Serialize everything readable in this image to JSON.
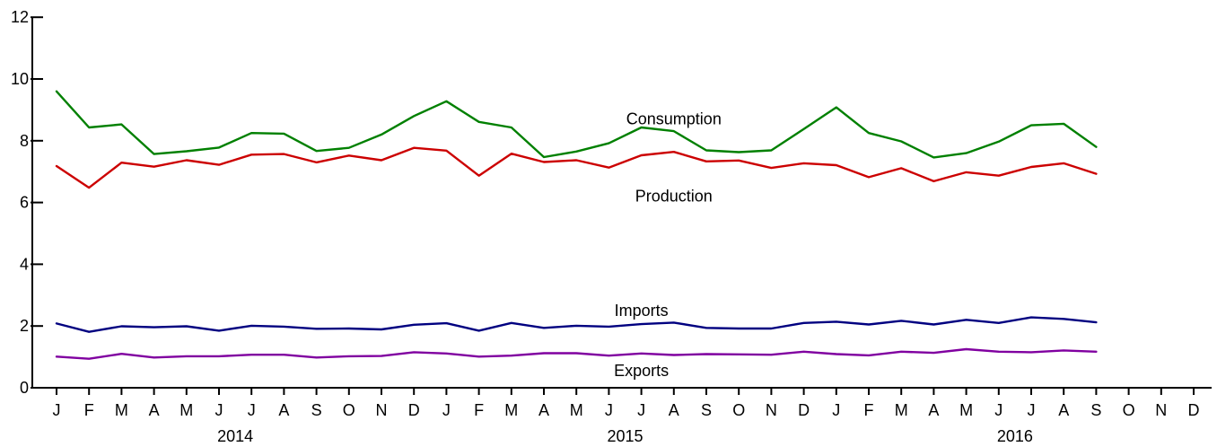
{
  "chart_data": {
    "type": "line",
    "title": "",
    "xlabel": "",
    "ylabel": "",
    "ylim": [
      0,
      12
    ],
    "y_ticks": [
      0,
      2,
      4,
      6,
      8,
      10,
      12
    ],
    "grid": false,
    "legend": "none (series labeled directly on lines)",
    "x_month_labels": [
      "J",
      "F",
      "M",
      "A",
      "M",
      "J",
      "J",
      "A",
      "S",
      "O",
      "N",
      "D",
      "J",
      "F",
      "M",
      "A",
      "M",
      "J",
      "J",
      "A",
      "S",
      "O",
      "N",
      "D",
      "J",
      "F",
      "M",
      "A",
      "M",
      "J",
      "J",
      "A",
      "S",
      "O",
      "N",
      "D"
    ],
    "x_year_labels": [
      "2014",
      "2015",
      "2016"
    ],
    "x": [
      "2014-01",
      "2014-02",
      "2014-03",
      "2014-04",
      "2014-05",
      "2014-06",
      "2014-07",
      "2014-08",
      "2014-09",
      "2014-10",
      "2014-11",
      "2014-12",
      "2015-01",
      "2015-02",
      "2015-03",
      "2015-04",
      "2015-05",
      "2015-06",
      "2015-07",
      "2015-08",
      "2015-09",
      "2015-10",
      "2015-11",
      "2015-12",
      "2016-01",
      "2016-02",
      "2016-03",
      "2016-04",
      "2016-05",
      "2016-06",
      "2016-07",
      "2016-08",
      "2016-09"
    ],
    "series": [
      {
        "name": "Consumption",
        "color": "#008000",
        "values": [
          9.6,
          8.43,
          8.53,
          7.57,
          7.66,
          7.78,
          8.25,
          8.23,
          7.67,
          7.77,
          8.2,
          8.8,
          9.28,
          8.61,
          8.43,
          7.47,
          7.65,
          7.92,
          8.43,
          8.31,
          7.69,
          7.63,
          7.69,
          8.38,
          9.08,
          8.25,
          7.98,
          7.46,
          7.6,
          7.97,
          8.5,
          8.55,
          7.8
        ]
      },
      {
        "name": "Production",
        "color": "#cc0000",
        "values": [
          7.18,
          6.48,
          7.29,
          7.16,
          7.37,
          7.22,
          7.55,
          7.57,
          7.3,
          7.52,
          7.37,
          7.77,
          7.68,
          6.87,
          7.58,
          7.31,
          7.37,
          7.13,
          7.53,
          7.64,
          7.33,
          7.36,
          7.12,
          7.27,
          7.21,
          6.82,
          7.11,
          6.69,
          6.98,
          6.87,
          7.15,
          7.27,
          6.93
        ]
      },
      {
        "name": "Imports",
        "color": "#000080",
        "values": [
          2.08,
          1.81,
          1.99,
          1.96,
          1.99,
          1.85,
          2.01,
          1.98,
          1.91,
          1.92,
          1.89,
          2.04,
          2.09,
          1.85,
          2.1,
          1.94,
          2.01,
          1.98,
          2.06,
          2.11,
          1.94,
          1.92,
          1.92,
          2.1,
          2.14,
          2.05,
          2.17,
          2.05,
          2.2,
          2.1,
          2.28,
          2.23,
          2.12
        ]
      },
      {
        "name": "Exports",
        "color": "#8000a0",
        "values": [
          1.01,
          0.94,
          1.1,
          0.98,
          1.02,
          1.02,
          1.07,
          1.07,
          0.98,
          1.02,
          1.03,
          1.15,
          1.11,
          1.01,
          1.04,
          1.12,
          1.12,
          1.04,
          1.11,
          1.06,
          1.09,
          1.08,
          1.07,
          1.17,
          1.09,
          1.05,
          1.17,
          1.13,
          1.25,
          1.17,
          1.15,
          1.21,
          1.17
        ]
      }
    ],
    "series_label_anchors": [
      {
        "text": "Consumption",
        "x": "2015-08",
        "y": 8.7
      },
      {
        "text": "Production",
        "x": "2015-08",
        "y": 6.2
      },
      {
        "text": "Imports",
        "x": "2015-07",
        "y": 2.5
      },
      {
        "text": "Exports",
        "x": "2015-07",
        "y": 0.55
      }
    ]
  }
}
